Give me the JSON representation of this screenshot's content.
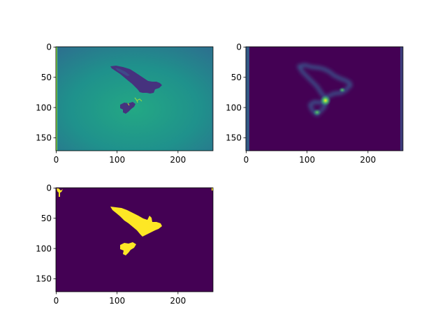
{
  "figure": {
    "background": "#ffffff",
    "colormap": "viridis",
    "colors": {
      "viridis_dark": "#440154",
      "viridis_mid": "#21918c",
      "viridis_bright": "#fde725",
      "bird_shadow": "#46327e"
    }
  },
  "chart_data": [
    {
      "type": "heatmap",
      "panel": "top-left",
      "content": "grayscale image of a bird of prey with a small bird, shown with viridis colormap; bright edge stripe on the left border",
      "title": "",
      "xlabel": "",
      "ylabel": "",
      "image_width": 258,
      "image_height": 172,
      "xlim": [
        -0.5,
        257.5
      ],
      "ylim": [
        171.5,
        -0.5
      ],
      "xticks": [
        0,
        100,
        200
      ],
      "yticks": [
        0,
        50,
        100,
        150
      ],
      "xtick_labels": [
        "0",
        "100",
        "200"
      ],
      "ytick_labels": [
        "0",
        "50",
        "100",
        "150"
      ]
    },
    {
      "type": "heatmap",
      "panel": "top-right",
      "content": "blurred edge/saliency response tracing the bird outlines on a dark background; brightest spot near x=135, y=88",
      "title": "",
      "xlabel": "",
      "ylabel": "",
      "image_width": 258,
      "image_height": 172,
      "xlim": [
        -0.5,
        257.5
      ],
      "ylim": [
        171.5,
        -0.5
      ],
      "xticks": [
        0,
        100,
        200
      ],
      "yticks": [
        0,
        50,
        100,
        150
      ],
      "xtick_labels": [
        "0",
        "100",
        "200"
      ],
      "ytick_labels": [
        "0",
        "50",
        "100",
        "150"
      ]
    },
    {
      "type": "heatmap",
      "panel": "bottom-left",
      "content": "binary segmentation mask: birds in yellow on dark purple background",
      "title": "",
      "xlabel": "",
      "ylabel": "",
      "image_width": 258,
      "image_height": 172,
      "xlim": [
        -0.5,
        257.5
      ],
      "ylim": [
        171.5,
        -0.5
      ],
      "xticks": [
        0,
        100,
        200
      ],
      "yticks": [
        0,
        50,
        100,
        150
      ],
      "xtick_labels": [
        "0",
        "100",
        "200"
      ],
      "ytick_labels": [
        "0",
        "50",
        "100",
        "150"
      ]
    }
  ]
}
